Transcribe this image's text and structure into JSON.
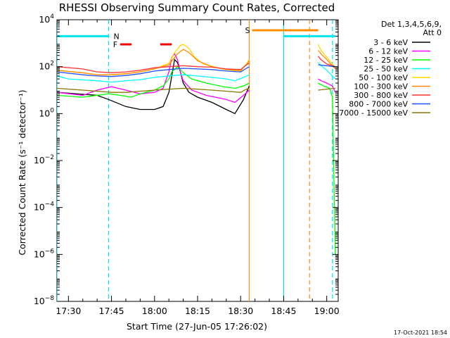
{
  "chart_data": {
    "type": "line",
    "title": "RHESSI Observing Summary Count Rates, Corrected",
    "xlabel": "Start Time (27-Jun-05 17:26:02)",
    "ylabel": "Corrected Count Rate (s⁻¹ detector⁻¹)",
    "ylog": true,
    "ylim_exponents": [
      -8,
      4
    ],
    "ytick_exponents": [
      -8,
      -6,
      -4,
      -2,
      0,
      2,
      4
    ],
    "xlim_minutes": [
      "17:26",
      "19:04"
    ],
    "xticks": [
      "17:30",
      "17:45",
      "18:00",
      "18:15",
      "18:30",
      "18:45",
      "19:00"
    ],
    "legend_header": [
      "Det 1,3,4,5,6,9,",
      "Att 0"
    ],
    "legend_position": "right",
    "series": [
      {
        "name": "3 - 6 keV",
        "color": "#000000",
        "points": [
          [
            "17:26",
            8
          ],
          [
            "17:40",
            6
          ],
          [
            "17:44",
            4
          ],
          [
            "17:50",
            2
          ],
          [
            "17:55",
            1.5
          ],
          [
            "18:00",
            1.5
          ],
          [
            "18:03",
            2
          ],
          [
            "18:05",
            8
          ],
          [
            "18:06",
            40
          ],
          [
            "18:07",
            200
          ],
          [
            "18:08",
            150
          ],
          [
            "18:09",
            60
          ],
          [
            "18:10",
            20
          ],
          [
            "18:12",
            8
          ],
          [
            "18:15",
            5
          ],
          [
            "18:20",
            3
          ],
          [
            "18:25",
            1.5
          ],
          [
            "18:28",
            1
          ],
          [
            "18:31",
            4
          ],
          [
            "18:33",
            15
          ],
          [
            "18:34",
            null
          ],
          [
            "18:57",
            null
          ],
          [
            "18:57",
            null
          ]
        ]
      },
      {
        "name": "6 - 12 keV",
        "color": "#ff00ff",
        "points": [
          [
            "17:26",
            8
          ],
          [
            "17:35",
            6
          ],
          [
            "17:40",
            10
          ],
          [
            "17:45",
            14
          ],
          [
            "17:50",
            10
          ],
          [
            "17:55",
            7
          ],
          [
            "18:00",
            8
          ],
          [
            "18:03",
            12
          ],
          [
            "18:05",
            60
          ],
          [
            "18:06",
            250
          ],
          [
            "18:07",
            350
          ],
          [
            "18:08",
            200
          ],
          [
            "18:09",
            60
          ],
          [
            "18:10",
            25
          ],
          [
            "18:13",
            10
          ],
          [
            "18:18",
            6
          ],
          [
            "18:25",
            4
          ],
          [
            "18:28",
            3
          ],
          [
            "18:31",
            6
          ],
          [
            "18:33",
            10
          ],
          [
            "18:34",
            null
          ],
          [
            "18:57",
            30
          ],
          [
            "18:58",
            25
          ],
          [
            "19:00",
            20
          ],
          [
            "19:02",
            15
          ],
          [
            "19:03",
            8
          ]
        ]
      },
      {
        "name": "12 - 25 keV",
        "color": "#00ff00",
        "points": [
          [
            "17:26",
            6
          ],
          [
            "17:35",
            5
          ],
          [
            "17:40",
            6
          ],
          [
            "17:44",
            7
          ],
          [
            "17:48",
            6
          ],
          [
            "17:52",
            5
          ],
          [
            "17:55",
            7
          ],
          [
            "18:00",
            10
          ],
          [
            "18:03",
            15
          ],
          [
            "18:05",
            30
          ],
          [
            "18:06",
            60
          ],
          [
            "18:08",
            100
          ],
          [
            "18:10",
            55
          ],
          [
            "18:13",
            30
          ],
          [
            "18:18",
            20
          ],
          [
            "18:24",
            14
          ],
          [
            "18:28",
            12
          ],
          [
            "18:31",
            15
          ],
          [
            "18:33",
            20
          ],
          [
            "18:34",
            null
          ],
          [
            "18:57",
            20
          ],
          [
            "18:59",
            15
          ],
          [
            "19:01",
            12
          ],
          [
            "19:02",
            5
          ],
          [
            "19:03",
            1e-06
          ]
        ]
      },
      {
        "name": "25 - 50 keV",
        "color": "#00ffff",
        "points": [
          [
            "17:26",
            40
          ],
          [
            "17:30",
            30
          ],
          [
            "17:40",
            25
          ],
          [
            "17:45",
            22
          ],
          [
            "17:50",
            25
          ],
          [
            "17:55",
            28
          ],
          [
            "18:00",
            35
          ],
          [
            "18:05",
            40
          ],
          [
            "18:10",
            45
          ],
          [
            "18:15",
            40
          ],
          [
            "18:20",
            35
          ],
          [
            "18:25",
            30
          ],
          [
            "18:28",
            25
          ],
          [
            "18:31",
            35
          ],
          [
            "18:33",
            45
          ],
          [
            "18:34",
            null
          ],
          [
            "18:57",
            150
          ],
          [
            "18:58",
            110
          ],
          [
            "19:00",
            70
          ],
          [
            "19:02",
            40
          ],
          [
            "19:03",
            30
          ]
        ]
      },
      {
        "name": "50 - 100 keV",
        "color": "#ffd700",
        "points": [
          [
            "17:26",
            70
          ],
          [
            "17:35",
            55
          ],
          [
            "17:40",
            45
          ],
          [
            "17:45",
            45
          ],
          [
            "17:50",
            50
          ],
          [
            "17:55",
            60
          ],
          [
            "18:00",
            80
          ],
          [
            "18:05",
            140
          ],
          [
            "18:07",
            400
          ],
          [
            "18:09",
            800
          ],
          [
            "18:10",
            900
          ],
          [
            "18:12",
            600
          ],
          [
            "18:14",
            250
          ],
          [
            "18:17",
            130
          ],
          [
            "18:22",
            90
          ],
          [
            "18:27",
            70
          ],
          [
            "18:30",
            65
          ],
          [
            "18:32",
            130
          ],
          [
            "18:33",
            200
          ],
          [
            "18:34",
            null
          ],
          [
            "18:57",
            900
          ],
          [
            "18:58",
            500
          ],
          [
            "19:00",
            250
          ],
          [
            "19:02",
            130
          ],
          [
            "19:03",
            90
          ]
        ]
      },
      {
        "name": "100 - 300 keV",
        "color": "#ff8c00",
        "points": [
          [
            "17:26",
            70
          ],
          [
            "17:35",
            55
          ],
          [
            "17:40",
            45
          ],
          [
            "17:45",
            45
          ],
          [
            "17:50",
            50
          ],
          [
            "17:55",
            60
          ],
          [
            "18:00",
            80
          ],
          [
            "18:05",
            120
          ],
          [
            "18:08",
            350
          ],
          [
            "18:10",
            550
          ],
          [
            "18:12",
            400
          ],
          [
            "18:15",
            180
          ],
          [
            "18:20",
            100
          ],
          [
            "18:25",
            75
          ],
          [
            "18:30",
            70
          ],
          [
            "18:32",
            120
          ],
          [
            "18:33",
            180
          ],
          [
            "18:34",
            null
          ],
          [
            "18:57",
            500
          ],
          [
            "18:58",
            350
          ],
          [
            "19:00",
            200
          ],
          [
            "19:02",
            110
          ],
          [
            "19:03",
            80
          ]
        ]
      },
      {
        "name": "300 - 800 keV",
        "color": "#ff3333",
        "points": [
          [
            "17:26",
            100
          ],
          [
            "17:35",
            80
          ],
          [
            "17:40",
            60
          ],
          [
            "17:45",
            55
          ],
          [
            "17:50",
            60
          ],
          [
            "17:55",
            70
          ],
          [
            "18:00",
            90
          ],
          [
            "18:05",
            100
          ],
          [
            "18:10",
            110
          ],
          [
            "18:15",
            100
          ],
          [
            "18:20",
            95
          ],
          [
            "18:25",
            80
          ],
          [
            "18:30",
            75
          ],
          [
            "18:32",
            120
          ],
          [
            "18:33",
            140
          ],
          [
            "18:34",
            null
          ],
          [
            "18:57",
            280
          ],
          [
            "18:58",
            200
          ],
          [
            "19:00",
            130
          ],
          [
            "19:02",
            110
          ],
          [
            "19:03",
            100
          ]
        ]
      },
      {
        "name": "800 - 7000 keV",
        "color": "#1f4fff",
        "points": [
          [
            "17:26",
            60
          ],
          [
            "17:35",
            45
          ],
          [
            "17:40",
            40
          ],
          [
            "17:45",
            38
          ],
          [
            "17:50",
            42
          ],
          [
            "17:55",
            50
          ],
          [
            "18:00",
            65
          ],
          [
            "18:05",
            75
          ],
          [
            "18:10",
            85
          ],
          [
            "18:15",
            80
          ],
          [
            "18:20",
            75
          ],
          [
            "18:25",
            65
          ],
          [
            "18:30",
            60
          ],
          [
            "18:32",
            85
          ],
          [
            "18:33",
            100
          ],
          [
            "18:34",
            null
          ],
          [
            "18:57",
            120
          ],
          [
            "19:00",
            110
          ],
          [
            "19:03",
            100
          ]
        ]
      },
      {
        "name": "7000 - 15000 keV",
        "color": "#8b7500",
        "points": [
          [
            "17:26",
            12
          ],
          [
            "17:35",
            10
          ],
          [
            "17:40",
            9
          ],
          [
            "17:45",
            8
          ],
          [
            "17:50",
            8
          ],
          [
            "17:55",
            9
          ],
          [
            "18:00",
            10
          ],
          [
            "18:05",
            11
          ],
          [
            "18:10",
            12
          ],
          [
            "18:15",
            11
          ],
          [
            "18:20",
            10
          ],
          [
            "18:25",
            9
          ],
          [
            "18:30",
            8
          ],
          [
            "18:32",
            11
          ],
          [
            "18:33",
            12
          ],
          [
            "18:34",
            null
          ],
          [
            "18:57",
            10
          ],
          [
            "19:00",
            11
          ],
          [
            "19:03",
            12
          ]
        ]
      }
    ],
    "flag_bars": [
      {
        "label": "",
        "color": "#00e5ee",
        "level": "top",
        "segments": [
          [
            "17:26",
            "17:44"
          ],
          [
            "18:45",
            "19:03"
          ]
        ]
      },
      {
        "label": "N",
        "color": "#00e5ee",
        "level": "top",
        "at": "17:45"
      },
      {
        "label": "F",
        "color": "#ff0000",
        "level": "second",
        "segments": [
          [
            "17:48",
            "17:52"
          ],
          [
            "18:02",
            "18:06"
          ]
        ]
      },
      {
        "label": "S",
        "color": "#ff8c00",
        "level": "upper",
        "segments": [
          [
            "18:34",
            "18:57"
          ]
        ]
      }
    ],
    "vertical_markers": [
      {
        "time": "17:26",
        "color": "#00e5ee",
        "style": "solid"
      },
      {
        "time": "17:44",
        "color": "#00e5ee",
        "style": "dashed"
      },
      {
        "time": "18:33",
        "color": "#ff8c00",
        "style": "solid"
      },
      {
        "time": "18:45",
        "color": "#00e5ee",
        "style": "solid"
      },
      {
        "time": "18:54",
        "color": "#ff8c00",
        "style": "dashed"
      },
      {
        "time": "19:02",
        "color": "#00e5ee",
        "style": "dashed"
      }
    ],
    "footer_stamp": "17-Oct-2021 18:54"
  }
}
